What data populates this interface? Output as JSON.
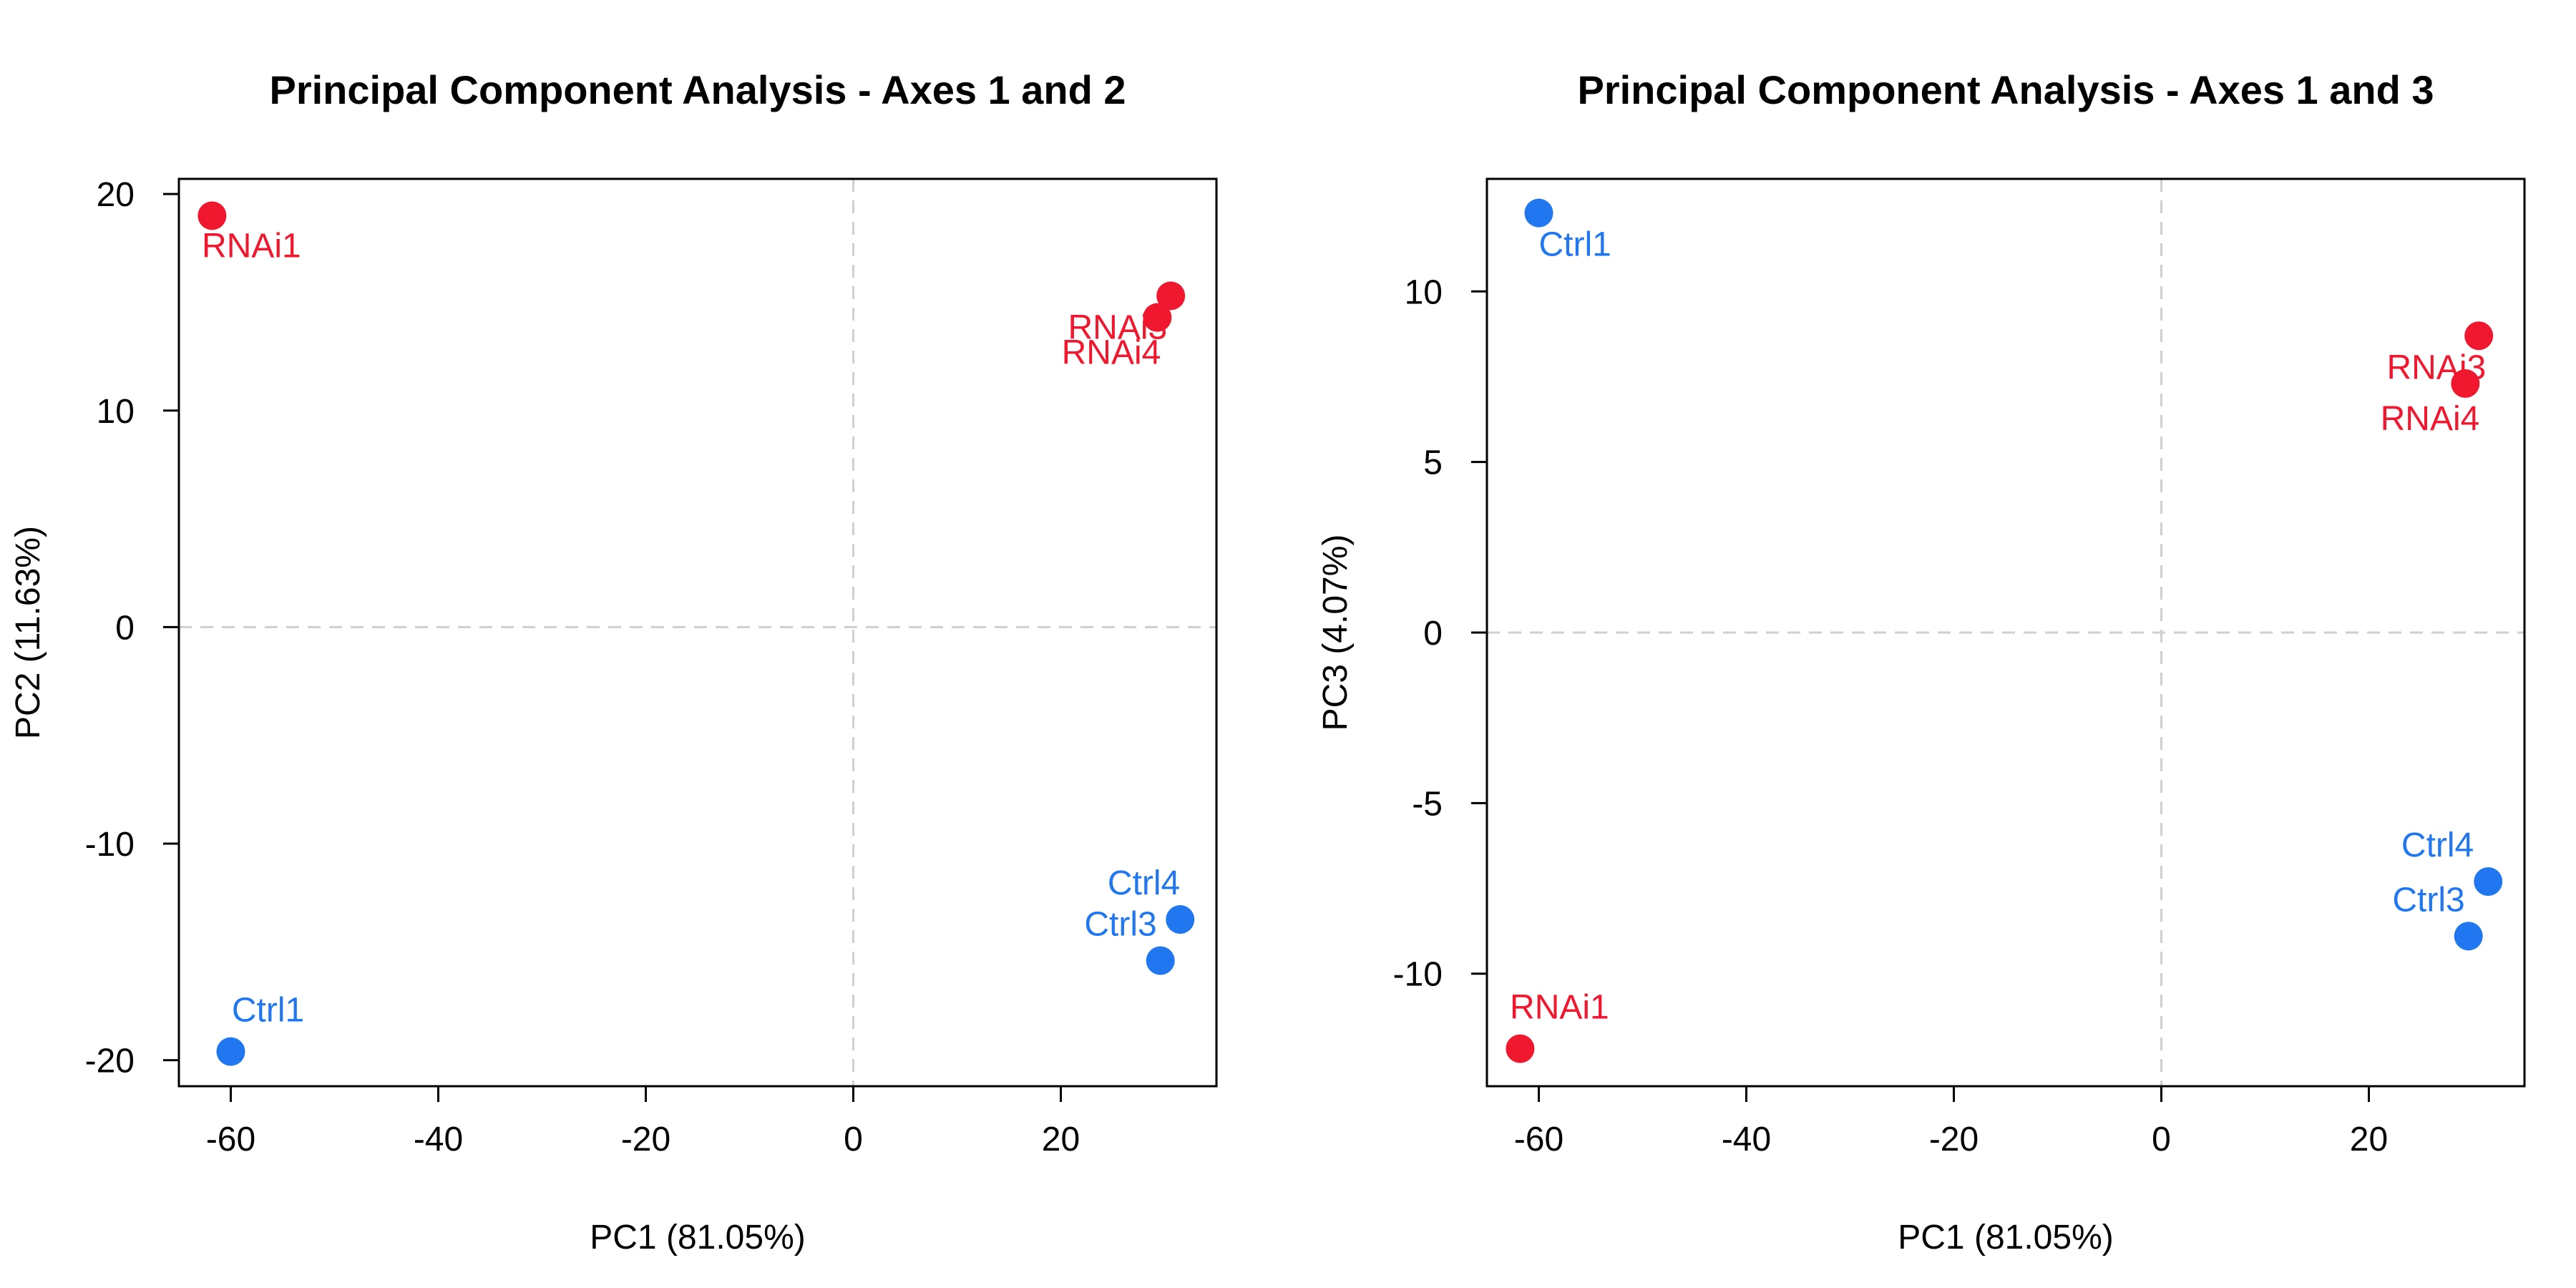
{
  "chart_data": [
    {
      "type": "scatter",
      "title": "Principal Component Analysis - Axes 1 and 2",
      "xlabel": "PC1 (81.05%)",
      "ylabel": "PC2 (11.63%)",
      "xlim": [
        -65,
        35
      ],
      "ylim": [
        -21.2,
        20.7
      ],
      "xticks": [
        -60,
        -40,
        -20,
        0,
        20
      ],
      "yticks": [
        -20,
        -10,
        0,
        10,
        20
      ],
      "reference_lines": {
        "x": 0,
        "y": 0,
        "style": "dashed",
        "color": "#cccccc"
      },
      "groups": {
        "RNAi": "#f0182e",
        "Ctrl": "#2077f0"
      },
      "points": [
        {
          "label": "RNAi1",
          "group": "RNAi",
          "x": -61.8,
          "y": 19.0
        },
        {
          "label": "RNAi3",
          "group": "RNAi",
          "x": 30.6,
          "y": 15.3
        },
        {
          "label": "RNAi4",
          "group": "RNAi",
          "x": 29.3,
          "y": 14.3
        },
        {
          "label": "Ctrl1",
          "group": "Ctrl",
          "x": -60.0,
          "y": -19.6
        },
        {
          "label": "Ctrl3",
          "group": "Ctrl",
          "x": 29.6,
          "y": -15.4
        },
        {
          "label": "Ctrl4",
          "group": "Ctrl",
          "x": 31.5,
          "y": -13.5
        }
      ]
    },
    {
      "type": "scatter",
      "title": "Principal Component Analysis - Axes 1 and 3",
      "xlabel": "PC1 (81.05%)",
      "ylabel": "PC3 (4.07%)",
      "xlim": [
        -65,
        35
      ],
      "ylim": [
        -13.3,
        13.3
      ],
      "xticks": [
        -60,
        -40,
        -20,
        0,
        20
      ],
      "yticks": [
        -10,
        -5,
        0,
        5,
        10
      ],
      "reference_lines": {
        "x": 0,
        "y": 0,
        "style": "dashed",
        "color": "#cccccc"
      },
      "groups": {
        "RNAi": "#f0182e",
        "Ctrl": "#2077f0"
      },
      "points": [
        {
          "label": "Ctrl1",
          "group": "Ctrl",
          "x": -60.0,
          "y": 12.3
        },
        {
          "label": "RNAi3",
          "group": "RNAi",
          "x": 30.6,
          "y": 8.7
        },
        {
          "label": "RNAi4",
          "group": "RNAi",
          "x": 29.3,
          "y": 7.3
        },
        {
          "label": "Ctrl4",
          "group": "Ctrl",
          "x": 31.5,
          "y": -7.3
        },
        {
          "label": "Ctrl3",
          "group": "Ctrl",
          "x": 29.6,
          "y": -8.9
        },
        {
          "label": "RNAi1",
          "group": "RNAi",
          "x": -61.8,
          "y": -12.2
        }
      ]
    }
  ]
}
